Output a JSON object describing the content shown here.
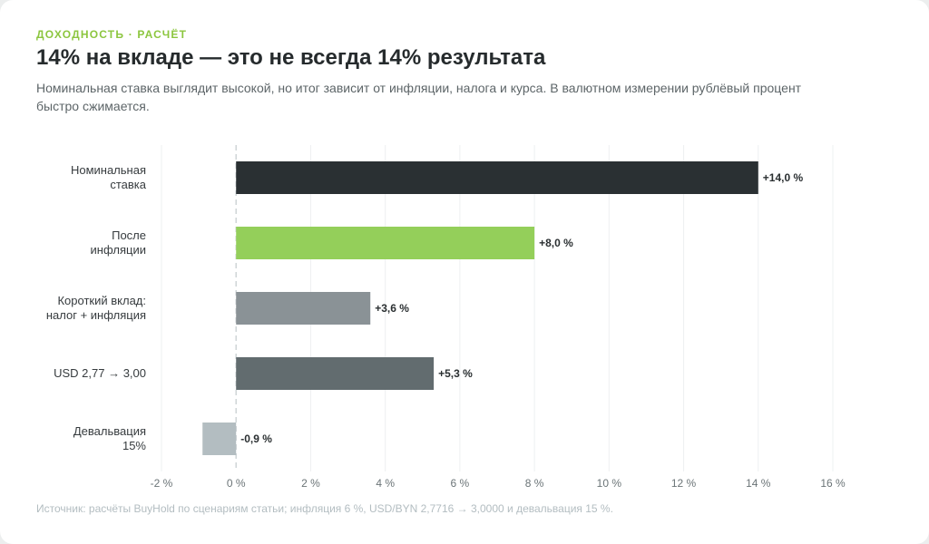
{
  "header": {
    "eyebrow": "ДОХОДНОСТЬ · РАСЧЁТ",
    "title": "14% на вкладе — это не всегда 14% результата",
    "subtitle": "Номинальная ставка выглядит высокой, но итог зависит от инфляции, налога и курса. В валютном измерении рублёвый процент быстро сжимается."
  },
  "source": "Источник: расчёты BuyHold по сценариям статьи; инфляция 6 %, USD/BYN 2,7716 → 3,0000 и девальвация 15 %.",
  "chart_data": {
    "type": "bar",
    "orientation": "horizontal",
    "categories": [
      [
        "Номинальная",
        "ставка"
      ],
      [
        "После",
        "инфляции"
      ],
      [
        "Короткий вклад:",
        "налог + инфляция"
      ],
      [
        "USD 2,77 → 3,00"
      ],
      [
        "Девальвация",
        "15%"
      ]
    ],
    "values": [
      14.0,
      8.0,
      3.6,
      5.3,
      -0.9
    ],
    "value_labels": [
      "+14,0 %",
      "+8,0 %",
      "+3,6 %",
      "+5,3 %",
      "-0,9 %"
    ],
    "bar_colors": [
      "#2a3033",
      "#94cf5a",
      "#8a9296",
      "#626c6f",
      "#b3bdc1"
    ],
    "xlim": [
      -2,
      16
    ],
    "xticks": [
      -2,
      0,
      2,
      4,
      6,
      8,
      10,
      12,
      14,
      16
    ],
    "xtick_labels": [
      "-2 %",
      "0 %",
      "2 %",
      "4 %",
      "6 %",
      "8 %",
      "10 %",
      "12 %",
      "14 %",
      "16 %"
    ],
    "grid": true,
    "zero_line": "dashed"
  }
}
